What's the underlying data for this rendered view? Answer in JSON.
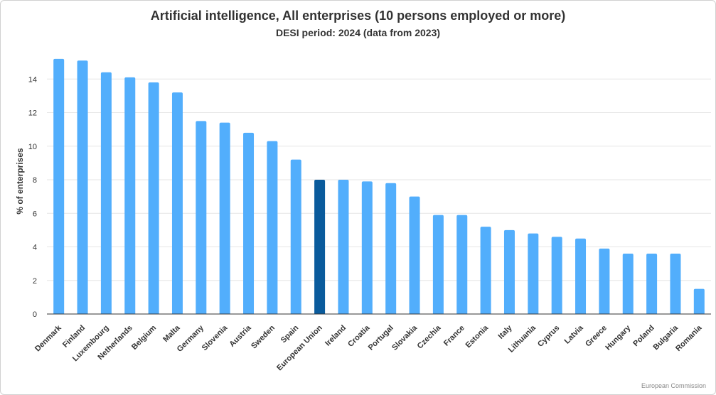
{
  "chart_data": {
    "type": "bar",
    "title": "Artificial intelligence, All enterprises (10 persons employed or more)",
    "subtitle": "DESI period: 2024 (data from 2023)",
    "xlabel": "",
    "ylabel": "% of enterprises",
    "ylim": [
      0,
      16
    ],
    "yticks": [
      0,
      2,
      4,
      6,
      8,
      10,
      12,
      14
    ],
    "grid": true,
    "categories": [
      "Denmark",
      "Finland",
      "Luxembourg",
      "Netherlands",
      "Belgium",
      "Malta",
      "Germany",
      "Slovenia",
      "Austria",
      "Sweden",
      "Spain",
      "European Union",
      "Ireland",
      "Croatia",
      "Portugal",
      "Slovakia",
      "Czechia",
      "France",
      "Estonia",
      "Italy",
      "Lithuania",
      "Cyprus",
      "Latvia",
      "Greece",
      "Hungary",
      "Poland",
      "Bulgaria",
      "Romania"
    ],
    "values": [
      15.2,
      15.1,
      14.4,
      14.1,
      13.8,
      13.2,
      11.5,
      11.4,
      10.8,
      10.3,
      9.2,
      8.0,
      8.0,
      7.9,
      7.8,
      7.0,
      5.9,
      5.9,
      5.2,
      5.0,
      4.8,
      4.6,
      4.5,
      3.9,
      3.6,
      3.6,
      3.6,
      1.5
    ],
    "highlight": "European Union",
    "colors": {
      "bar": "#52aefc",
      "highlight": "#0a5b9c",
      "grid": "#e6e6e6",
      "axis": "#333333"
    }
  },
  "credit": "European Commission"
}
